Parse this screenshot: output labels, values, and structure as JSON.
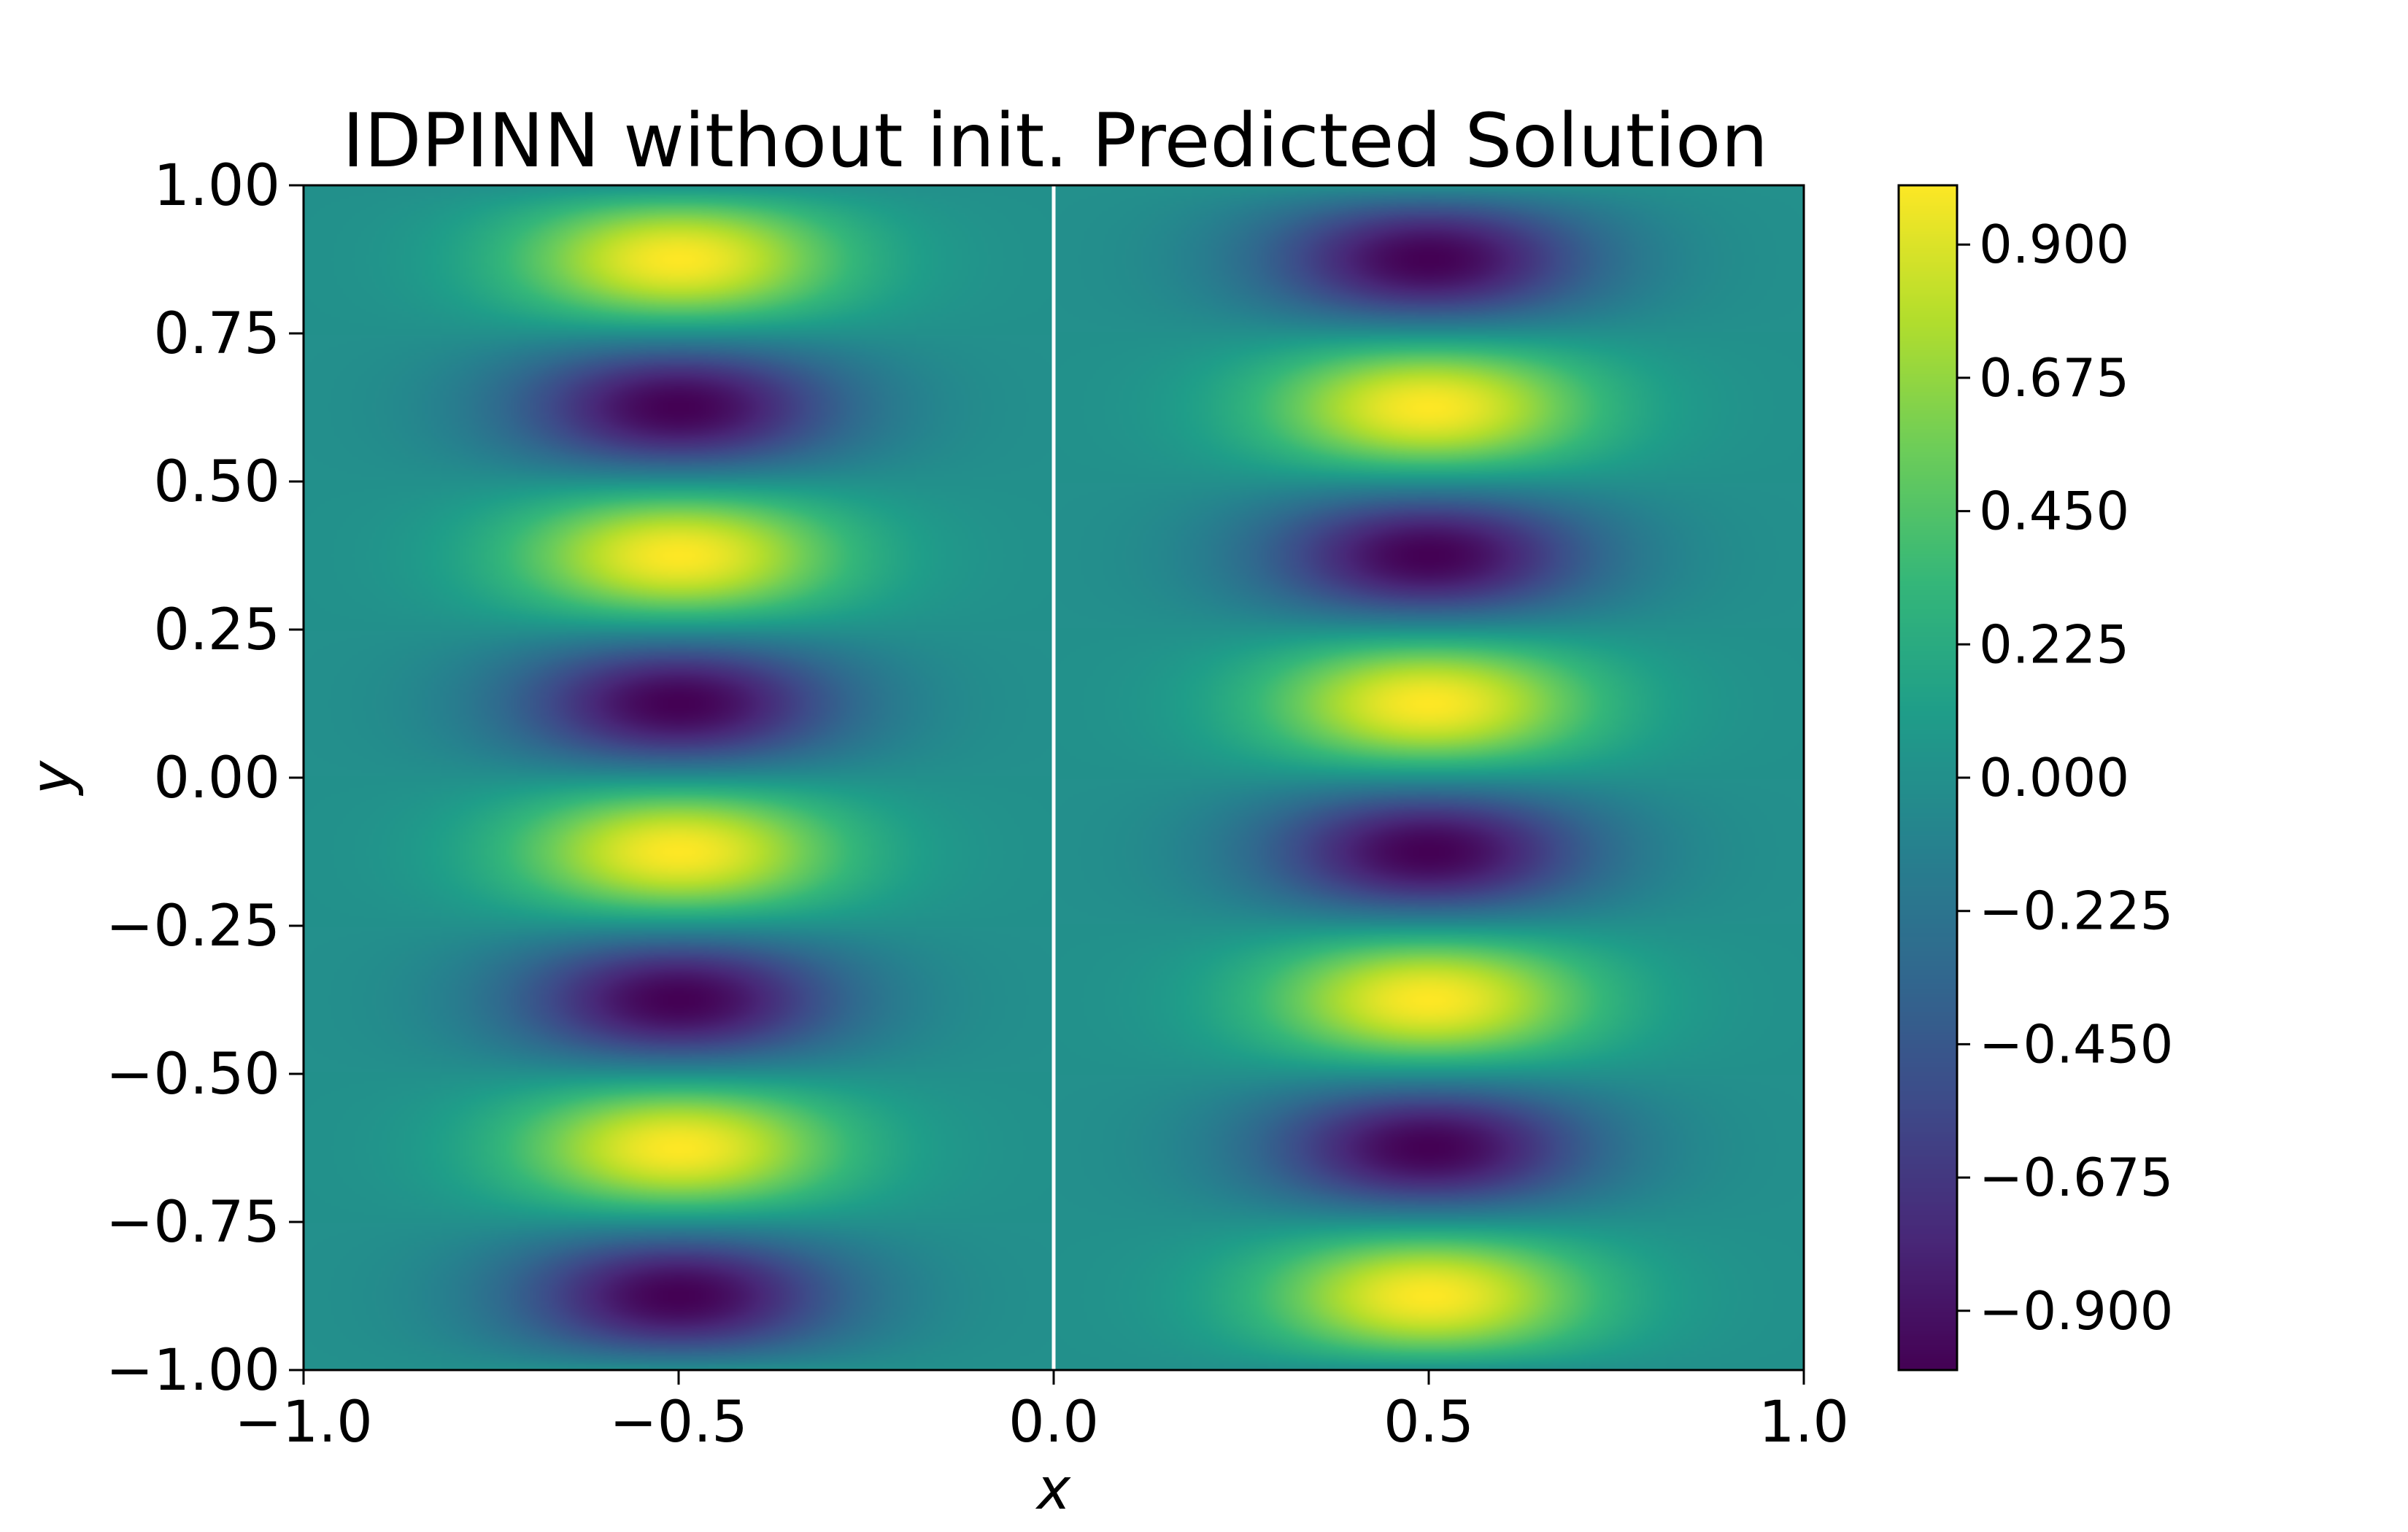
{
  "chart_data": {
    "type": "heatmap",
    "title": "IDPINN without init. Predicted Solution",
    "xlabel": "x",
    "ylabel": "y",
    "xlim": [
      -1.0,
      1.0
    ],
    "ylim": [
      -1.0,
      1.0
    ],
    "x_ticks": [
      "−1.0",
      "−0.5",
      "0.0",
      "0.5",
      "1.0"
    ],
    "x_tick_values": [
      -1.0,
      -0.5,
      0.0,
      0.5,
      1.0
    ],
    "y_ticks": [
      "−1.00",
      "−0.75",
      "−0.50",
      "−0.25",
      "0.00",
      "0.25",
      "0.50",
      "0.75",
      "1.00"
    ],
    "y_tick_values": [
      -1.0,
      -0.75,
      -0.5,
      -0.25,
      0.0,
      0.25,
      0.5,
      0.75,
      1.0
    ],
    "colormap": "viridis",
    "value_range": [
      -1.0,
      1.0
    ],
    "colorbar_ticks": [
      "−0.900",
      "−0.675",
      "−0.450",
      "−0.225",
      "0.000",
      "0.225",
      "0.450",
      "0.675",
      "0.900"
    ],
    "colorbar_tick_values": [
      -0.9,
      -0.675,
      -0.45,
      -0.225,
      0.0,
      0.225,
      0.45,
      0.675,
      0.9
    ],
    "field": {
      "peaks_x": [
        -0.5,
        0.5
      ],
      "peaks_y": [
        -0.875,
        -0.625,
        -0.375,
        -0.125,
        0.125,
        0.375,
        0.625,
        0.875
      ],
      "left_half_values_at_peaks_y": [
        -1.0,
        1.0,
        -1.0,
        1.0,
        -1.0,
        1.0,
        -1.0,
        1.0
      ],
      "right_half_values_at_peaks_y": [
        1.0,
        -1.0,
        1.0,
        -1.0,
        1.0,
        -1.0,
        1.0,
        -1.0
      ]
    },
    "interface_line_x": 0.0,
    "interface_line_color": "#ffffff",
    "grid": false
  }
}
